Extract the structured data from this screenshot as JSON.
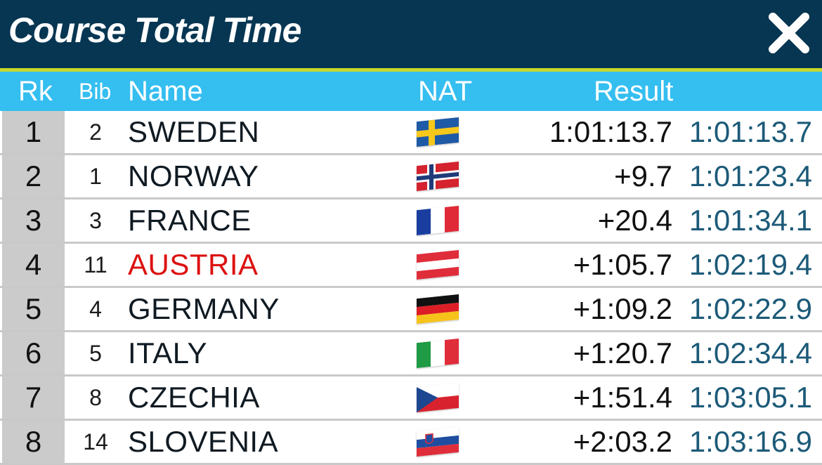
{
  "header": {
    "title": "Course Total Time",
    "close_icon": "close-icon"
  },
  "colors": {
    "header_bg": "#073652",
    "accent_stripe": "#c8d82a",
    "column_header_bg": "#35bef0",
    "highlight_name": "#dd1111",
    "total_time": "#1c5a78"
  },
  "columns": {
    "rk": "Rk",
    "bib": "Bib",
    "name": "Name",
    "nat": "NAT",
    "result": "Result"
  },
  "rows": [
    {
      "rk": "1",
      "bib": "2",
      "name": "SWEDEN",
      "flag": "sweden-flag-icon",
      "diff": "1:01:13.7",
      "time": "1:01:13.7",
      "highlight": false
    },
    {
      "rk": "2",
      "bib": "1",
      "name": "NORWAY",
      "flag": "norway-flag-icon",
      "diff": "+9.7",
      "time": "1:01:23.4",
      "highlight": false
    },
    {
      "rk": "3",
      "bib": "3",
      "name": "FRANCE",
      "flag": "france-flag-icon",
      "diff": "+20.4",
      "time": "1:01:34.1",
      "highlight": false
    },
    {
      "rk": "4",
      "bib": "11",
      "name": "AUSTRIA",
      "flag": "austria-flag-icon",
      "diff": "+1:05.7",
      "time": "1:02:19.4",
      "highlight": true
    },
    {
      "rk": "5",
      "bib": "4",
      "name": "GERMANY",
      "flag": "germany-flag-icon",
      "diff": "+1:09.2",
      "time": "1:02:22.9",
      "highlight": false
    },
    {
      "rk": "6",
      "bib": "5",
      "name": "ITALY",
      "flag": "italy-flag-icon",
      "diff": "+1:20.7",
      "time": "1:02:34.4",
      "highlight": false
    },
    {
      "rk": "7",
      "bib": "8",
      "name": "CZECHIA",
      "flag": "czechia-flag-icon",
      "diff": "+1:51.4",
      "time": "1:03:05.1",
      "highlight": false
    },
    {
      "rk": "8",
      "bib": "14",
      "name": "SLOVENIA",
      "flag": "slovenia-flag-icon",
      "diff": "+2:03.2",
      "time": "1:03:16.9",
      "highlight": false
    }
  ]
}
